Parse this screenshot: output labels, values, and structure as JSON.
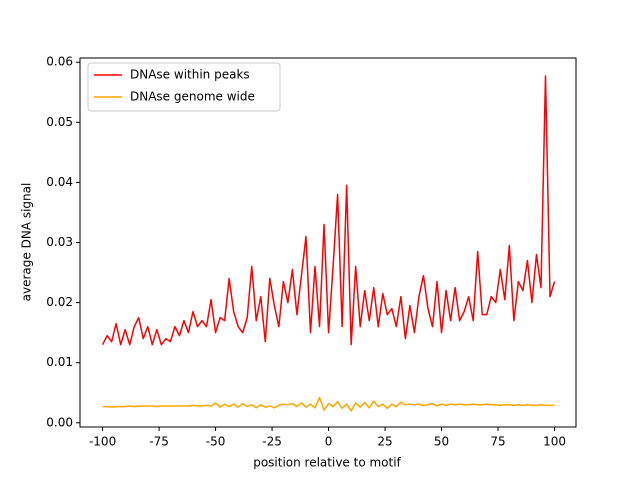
{
  "chart_data": {
    "type": "line",
    "xlabel": "position relative to motif",
    "ylabel": "average DNA signal",
    "x": [
      -100,
      -98,
      -96,
      -94,
      -92,
      -90,
      -88,
      -86,
      -84,
      -82,
      -80,
      -78,
      -76,
      -74,
      -72,
      -70,
      -68,
      -66,
      -64,
      -62,
      -60,
      -58,
      -56,
      -54,
      -52,
      -50,
      -48,
      -46,
      -44,
      -42,
      -40,
      -38,
      -36,
      -34,
      -32,
      -30,
      -28,
      -26,
      -24,
      -22,
      -20,
      -18,
      -16,
      -14,
      -12,
      -10,
      -8,
      -6,
      -4,
      -2,
      0,
      2,
      4,
      6,
      8,
      10,
      12,
      14,
      16,
      18,
      20,
      22,
      24,
      26,
      28,
      30,
      32,
      34,
      36,
      38,
      40,
      42,
      44,
      46,
      48,
      50,
      52,
      54,
      56,
      58,
      60,
      62,
      64,
      66,
      68,
      70,
      72,
      74,
      76,
      78,
      80,
      82,
      84,
      86,
      88,
      90,
      92,
      94,
      96,
      98,
      100
    ],
    "series": [
      {
        "name": "DNAse within peaks",
        "color": "#ff0000",
        "values": [
          0.013,
          0.0145,
          0.0135,
          0.0165,
          0.013,
          0.0155,
          0.013,
          0.016,
          0.0175,
          0.014,
          0.016,
          0.013,
          0.0155,
          0.013,
          0.014,
          0.0135,
          0.016,
          0.0145,
          0.017,
          0.015,
          0.0185,
          0.016,
          0.017,
          0.016,
          0.0205,
          0.015,
          0.0175,
          0.017,
          0.024,
          0.0185,
          0.016,
          0.015,
          0.0175,
          0.026,
          0.017,
          0.021,
          0.0135,
          0.024,
          0.0195,
          0.016,
          0.0235,
          0.02,
          0.0255,
          0.018,
          0.0245,
          0.031,
          0.015,
          0.026,
          0.016,
          0.033,
          0.015,
          0.026,
          0.038,
          0.016,
          0.0395,
          0.013,
          0.026,
          0.016,
          0.022,
          0.017,
          0.0225,
          0.016,
          0.0215,
          0.018,
          0.019,
          0.016,
          0.021,
          0.014,
          0.0195,
          0.015,
          0.021,
          0.0245,
          0.019,
          0.016,
          0.0235,
          0.015,
          0.022,
          0.017,
          0.0225,
          0.017,
          0.0185,
          0.021,
          0.017,
          0.0285,
          0.018,
          0.018,
          0.021,
          0.02,
          0.0255,
          0.0205,
          0.0295,
          0.017,
          0.0235,
          0.022,
          0.027,
          0.02,
          0.028,
          0.0225,
          0.0577,
          0.021,
          0.0235
        ]
      },
      {
        "name": "DNAse genome wide",
        "color": "#ffa500",
        "values": [
          0.0027,
          0.0027,
          0.0026,
          0.0027,
          0.0027,
          0.0027,
          0.0028,
          0.0027,
          0.0028,
          0.0028,
          0.0028,
          0.0028,
          0.0027,
          0.0028,
          0.0028,
          0.0028,
          0.0028,
          0.0028,
          0.0028,
          0.0028,
          0.0029,
          0.0028,
          0.0028,
          0.0029,
          0.0028,
          0.0033,
          0.0026,
          0.0031,
          0.0027,
          0.0031,
          0.0026,
          0.0032,
          0.0027,
          0.003,
          0.0025,
          0.003,
          0.0026,
          0.0028,
          0.0025,
          0.0029,
          0.0031,
          0.003,
          0.0032,
          0.0027,
          0.0033,
          0.0026,
          0.0031,
          0.0025,
          0.0042,
          0.0021,
          0.0032,
          0.0027,
          0.0035,
          0.0024,
          0.0031,
          0.002,
          0.0033,
          0.0026,
          0.0034,
          0.0025,
          0.0036,
          0.0027,
          0.0031,
          0.0024,
          0.0031,
          0.0027,
          0.0034,
          0.003,
          0.0031,
          0.003,
          0.0031,
          0.0029,
          0.003,
          0.0032,
          0.0028,
          0.0031,
          0.0029,
          0.0031,
          0.003,
          0.0031,
          0.003,
          0.003,
          0.0031,
          0.003,
          0.003,
          0.0031,
          0.003,
          0.003,
          0.0029,
          0.003,
          0.003,
          0.0029,
          0.003,
          0.0029,
          0.003,
          0.0029,
          0.0029,
          0.003,
          0.0029,
          0.0029,
          0.0029
        ]
      }
    ],
    "xlim": [
      -110,
      109.5
    ],
    "xticks": [
      -100,
      -75,
      -50,
      -25,
      0,
      25,
      50,
      75,
      100
    ],
    "ylim": [
      -0.0007,
      0.0607
    ],
    "yticks": [
      {
        "value": 0,
        "label": "0.00"
      },
      {
        "value": 0.01,
        "label": "0.01"
      },
      {
        "value": 0.02,
        "label": "0.02"
      },
      {
        "value": 0.03,
        "label": "0.03"
      },
      {
        "value": 0.04,
        "label": "0.04"
      },
      {
        "value": 0.05,
        "label": "0.05"
      },
      {
        "value": 0.06,
        "label": "0.06"
      }
    ],
    "legend": "upper left",
    "grid": false
  }
}
